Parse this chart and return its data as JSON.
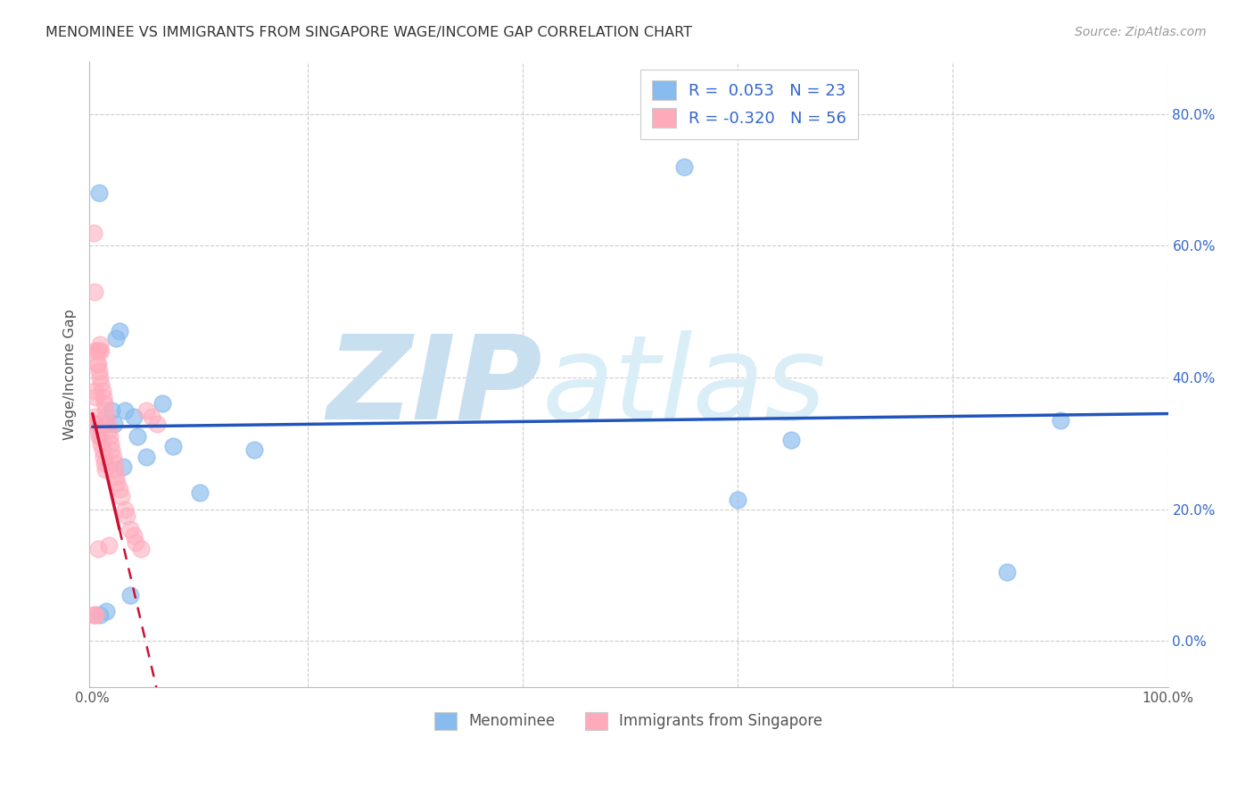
{
  "title": "MENOMINEE VS IMMIGRANTS FROM SINGAPORE WAGE/INCOME GAP CORRELATION CHART",
  "source": "Source: ZipAtlas.com",
  "ylabel": "Wage/Income Gap",
  "blue_R": 0.053,
  "blue_N": 23,
  "pink_R": -0.32,
  "pink_N": 56,
  "blue_label": "Menominee",
  "pink_label": "Immigrants from Singapore",
  "xlim": [
    -0.003,
    1.0
  ],
  "ylim": [
    -0.07,
    0.88
  ],
  "yticks": [
    0.0,
    0.2,
    0.4,
    0.6,
    0.8
  ],
  "xticks": [
    0.0,
    0.2,
    0.4,
    0.6,
    0.8,
    1.0
  ],
  "blue_scatter_x": [
    0.006,
    0.012,
    0.018,
    0.022,
    0.025,
    0.03,
    0.038,
    0.042,
    0.05,
    0.065,
    0.075,
    0.1,
    0.15,
    0.6,
    0.65,
    0.85,
    0.9,
    0.02,
    0.028,
    0.035,
    0.55,
    0.007,
    0.013
  ],
  "blue_scatter_y": [
    0.68,
    0.33,
    0.35,
    0.46,
    0.47,
    0.35,
    0.34,
    0.31,
    0.28,
    0.36,
    0.295,
    0.225,
    0.29,
    0.215,
    0.305,
    0.105,
    0.335,
    0.33,
    0.265,
    0.07,
    0.72,
    0.04,
    0.045
  ],
  "pink_scatter_x": [
    0.001,
    0.001,
    0.002,
    0.002,
    0.002,
    0.003,
    0.003,
    0.003,
    0.004,
    0.004,
    0.004,
    0.005,
    0.005,
    0.005,
    0.006,
    0.006,
    0.006,
    0.007,
    0.007,
    0.007,
    0.008,
    0.008,
    0.008,
    0.009,
    0.009,
    0.01,
    0.01,
    0.011,
    0.011,
    0.012,
    0.012,
    0.013,
    0.014,
    0.015,
    0.015,
    0.016,
    0.017,
    0.018,
    0.019,
    0.02,
    0.021,
    0.022,
    0.023,
    0.025,
    0.027,
    0.03,
    0.032,
    0.035,
    0.038,
    0.04,
    0.045,
    0.05,
    0.055,
    0.06,
    0.002,
    0.003
  ],
  "pink_scatter_y": [
    0.04,
    0.62,
    0.04,
    0.53,
    0.34,
    0.04,
    0.44,
    0.33,
    0.42,
    0.33,
    0.44,
    0.42,
    0.32,
    0.14,
    0.41,
    0.31,
    0.44,
    0.4,
    0.31,
    0.45,
    0.39,
    0.3,
    0.44,
    0.38,
    0.29,
    0.37,
    0.28,
    0.36,
    0.27,
    0.35,
    0.26,
    0.34,
    0.33,
    0.32,
    0.145,
    0.31,
    0.3,
    0.29,
    0.28,
    0.27,
    0.26,
    0.25,
    0.24,
    0.23,
    0.22,
    0.2,
    0.19,
    0.17,
    0.16,
    0.15,
    0.14,
    0.35,
    0.34,
    0.33,
    0.38,
    0.37
  ],
  "background_color": "#ffffff",
  "blue_color": "#88bbee",
  "pink_color": "#ffaabb",
  "trend_blue_color": "#2255bb",
  "trend_pink_color": "#cc1133",
  "watermark_zip_color": "#c8dff0",
  "watermark_atlas_color": "#daeef8",
  "grid_color": "#cccccc",
  "ytick_color": "#3366cc",
  "xtick_color": "#555555",
  "title_color": "#333333",
  "source_color": "#999999",
  "ylabel_color": "#555555"
}
